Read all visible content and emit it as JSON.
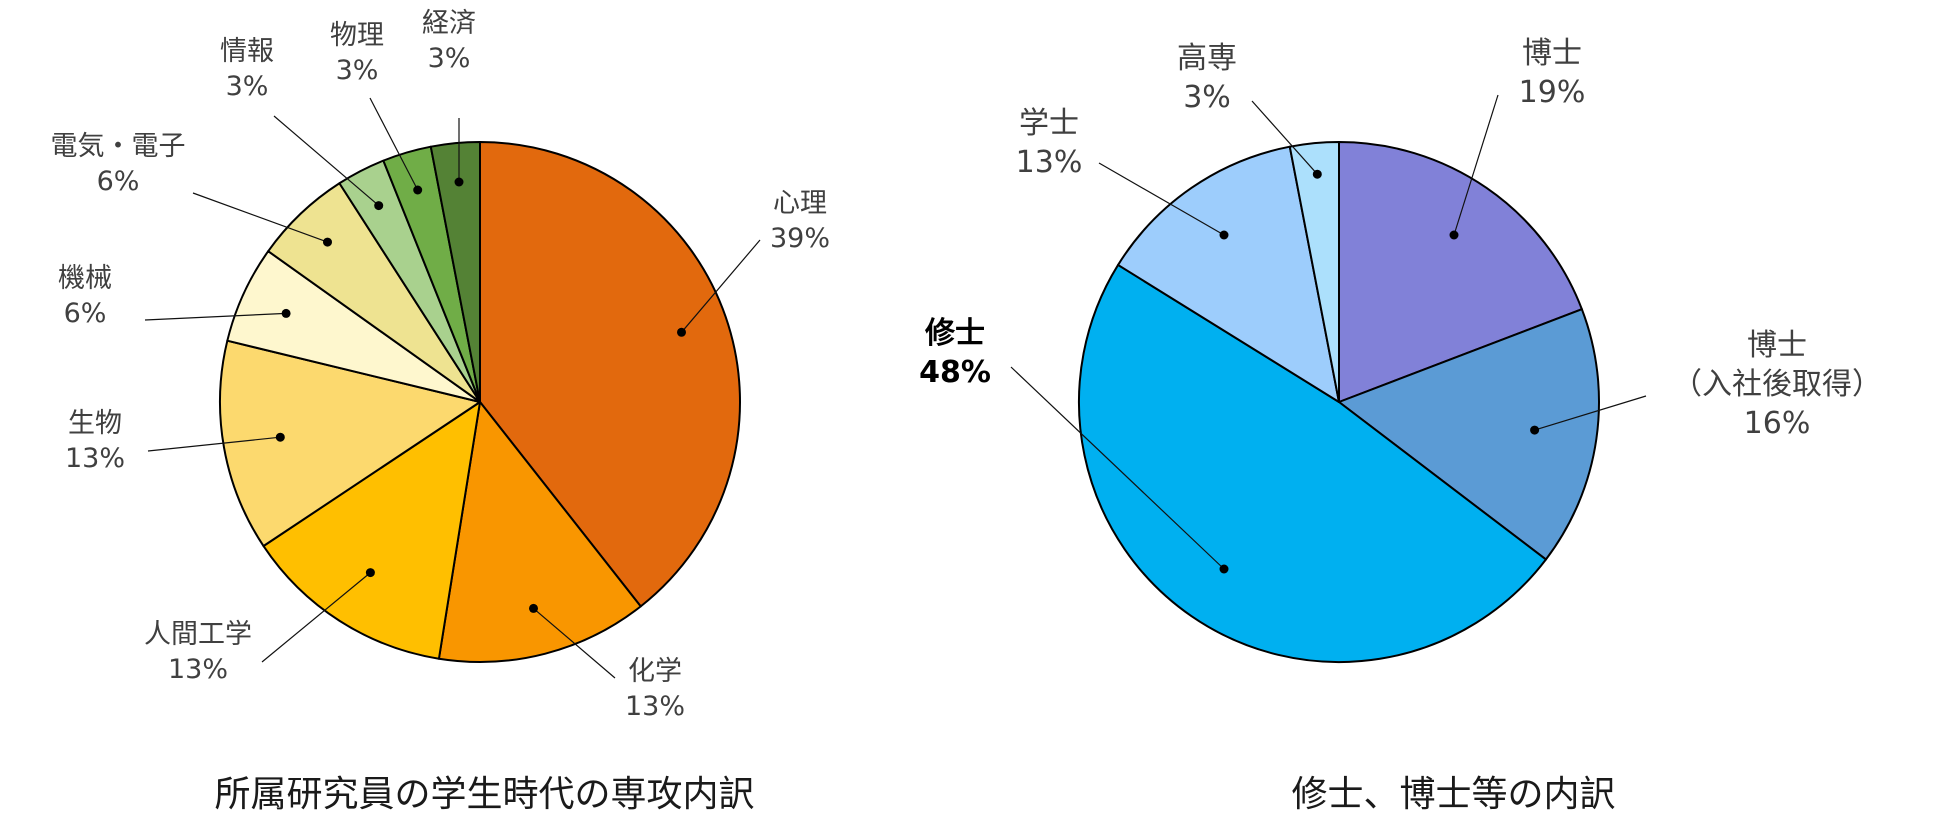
{
  "chart_data": [
    {
      "type": "pie",
      "title": "所属研究員の学生時代の専攻内訳",
      "categories": [
        "心理",
        "化学",
        "人間工学",
        "生物",
        "機械",
        "電気・電子",
        "情報",
        "物理",
        "経済"
      ],
      "values": [
        39,
        13,
        13,
        13,
        6,
        6,
        3,
        3,
        3
      ],
      "data_labels": [
        "39%",
        "13%",
        "13%",
        "13%",
        "6%",
        "6%",
        "3%",
        "3%",
        "3%"
      ],
      "colors": [
        "#E2690D",
        "#F99600",
        "#FFBF00",
        "#FCD96E",
        "#FEF7CE",
        "#EEE391",
        "#A9D18E",
        "#70AD47",
        "#548235"
      ],
      "start": "12 o'clock, clockwise",
      "legend": "none (leader-line labels)"
    },
    {
      "type": "pie",
      "title": "修士、博士等の内訳",
      "categories": [
        "博士",
        "博士\n（入社後取得）",
        "修士",
        "学士",
        "高専"
      ],
      "values": [
        19,
        16,
        48,
        13,
        3
      ],
      "data_labels": [
        "19%",
        "16%",
        "48%",
        "13%",
        "3%"
      ],
      "colors": [
        "#8181D8",
        "#5B9BD5",
        "#00B0F0",
        "#9DCDFC",
        "#ACE0FC"
      ],
      "start": "12 o'clock, clockwise",
      "legend": "none (leader-line labels)"
    }
  ]
}
